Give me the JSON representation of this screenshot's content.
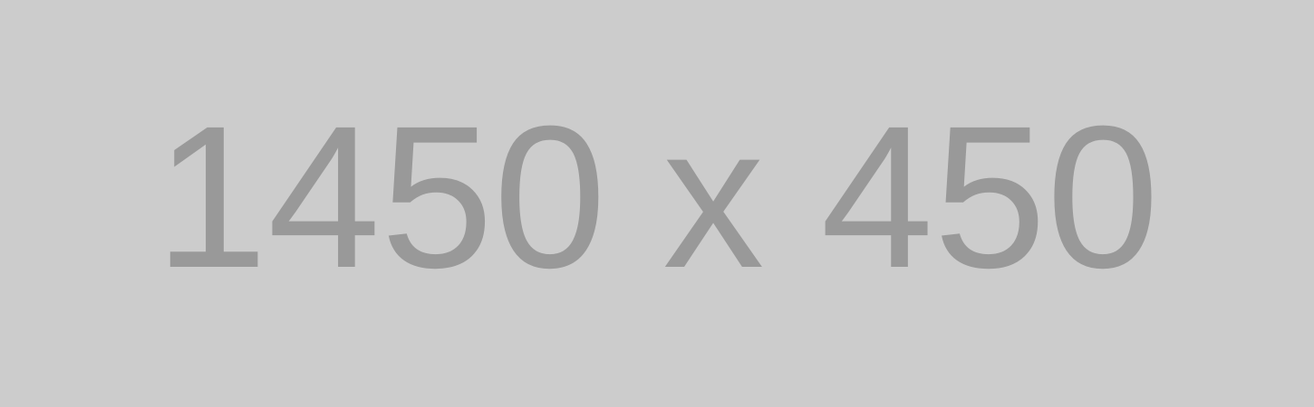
{
  "placeholder": {
    "text": "1450 x 450",
    "background_color": "#cccccc",
    "text_color": "#999999"
  }
}
